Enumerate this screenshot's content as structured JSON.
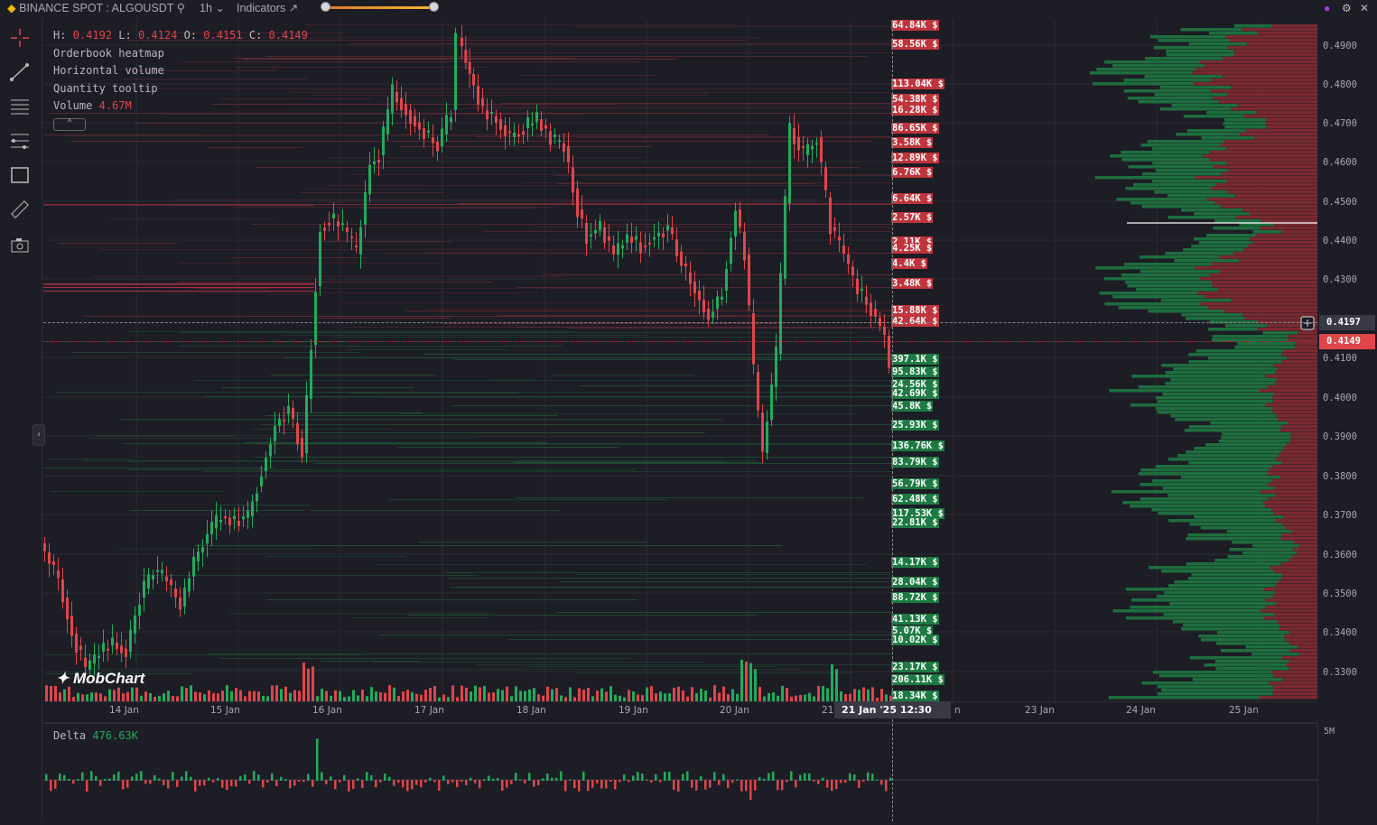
{
  "topbar": {
    "symbol": "BINANCE SPOT : ALGOUSDT",
    "timeframe": "1h",
    "indicators_label": "Indicators"
  },
  "legend": {
    "h_label": "H:",
    "h": "0.4192",
    "l_label": "L:",
    "l": "0.4124",
    "o_label": "O:",
    "o": "0.4151",
    "c_label": "C:",
    "c": "0.4149",
    "line2": "Orderbook heatmap",
    "line3": "Horizontal volume",
    "line4": "Quantity tooltip",
    "volume_label": "Volume",
    "volume_value": "4.67M"
  },
  "price_axis": [
    "0.4900",
    "0.4800",
    "0.4700",
    "0.4600",
    "0.4500",
    "0.4400",
    "0.4300",
    "0.4100",
    "0.4000",
    "0.3900",
    "0.3800",
    "0.3700",
    "0.3600",
    "0.3500",
    "0.3400",
    "0.3300"
  ],
  "crosshair_price": "0.4197",
  "last_price": "0.4149",
  "time_axis": [
    "14 Jan",
    "15 Jan",
    "16 Jan",
    "17 Jan",
    "18 Jan",
    "19 Jan",
    "20 Jan",
    "21",
    "n",
    "23 Jan",
    "24 Jan",
    "25 Jan"
  ],
  "crosshair_time": "21 Jan '25  12:30",
  "ask_levels": [
    "64.84K $",
    "58.56K $",
    "113.04K $",
    "54.38K $",
    "16.28K $",
    "86.65K $",
    "3.58K $",
    "12.89K $",
    "6.76K $",
    "6.64K $",
    "2.57K $",
    "2.11K $",
    "4.25K $",
    "4.4K $",
    "3.48K $",
    "15.88K $",
    "42.64K $"
  ],
  "bid_levels": [
    "397.1K $",
    "95.83K $",
    "24.56K $",
    "42.69K $",
    "45.8K $",
    "25.93K $",
    "136.76K $",
    "83.79K $",
    "56.79K $",
    "62.48K $",
    "117.53K $",
    "22.81K $",
    "14.17K $",
    "28.04K $",
    "88.72K $",
    "41.13K $",
    "5.07K $",
    "10.02K $",
    "23.17K $",
    "206.11K $",
    "18.34K $"
  ],
  "delta": {
    "label": "Delta",
    "value": "476.63K",
    "scale": "5M"
  },
  "logo_text": "MobChart",
  "colors": {
    "up": "#22ab5c",
    "down": "#e0454a",
    "bg": "#1d1d26"
  }
}
